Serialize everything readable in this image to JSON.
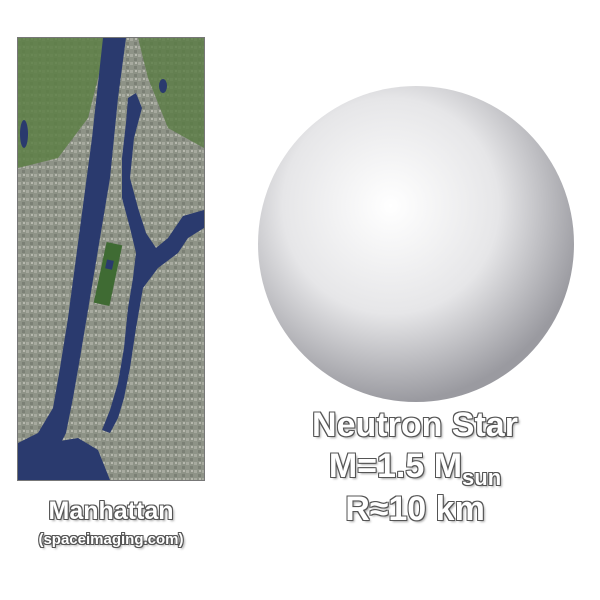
{
  "map": {
    "label": "Manhattan",
    "source": "(spaceimaging.com)",
    "colors": {
      "water": "#2a3a6e",
      "city": "#8e9387",
      "park": "#4e7a3a",
      "urban_light": "#b4b6ad"
    }
  },
  "neutron_star": {
    "title": "Neutron Star",
    "mass_prefix": "M=1.5 M",
    "mass_subscript": "sun",
    "radius": "R≈10 km",
    "colors": {
      "highlight": "#ffffff",
      "shade": "#9a9aa0"
    }
  }
}
